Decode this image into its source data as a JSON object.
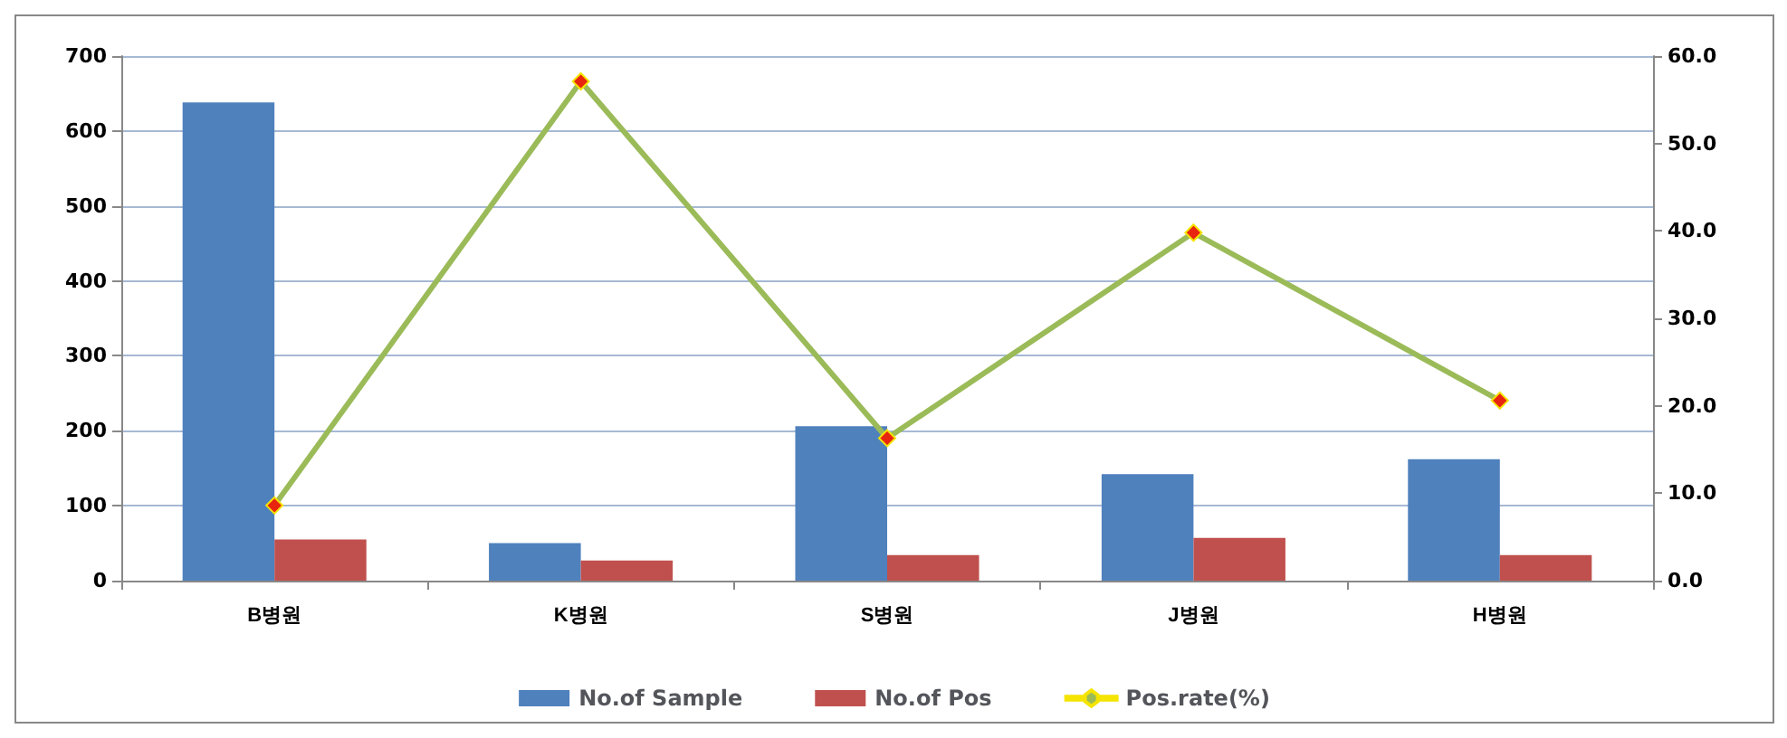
{
  "chart_data": {
    "type": "bar",
    "categories": [
      "B병원",
      "K병원",
      "S병원",
      "J병원",
      "H병원"
    ],
    "series": [
      {
        "name": "No.of Sample",
        "color": "#4f81bd",
        "values": [
          638,
          50,
          206,
          142,
          162
        ]
      },
      {
        "name": "No.of Pos",
        "color": "#c0504d",
        "values": [
          55,
          27,
          34,
          57,
          34
        ]
      },
      {
        "name": "Pos.rate(%)",
        "type": "line",
        "axis": "y2",
        "color": "#9bbb59",
        "marker": "diamond",
        "values": [
          8.6,
          57.1,
          16.3,
          39.8,
          20.6
        ]
      }
    ],
    "ylim": [
      0,
      700
    ],
    "yticks": [
      0,
      100,
      200,
      300,
      400,
      500,
      600,
      700
    ],
    "y2lim": [
      0,
      60
    ],
    "y2ticks": [
      {
        "value": 0,
        "label": "0.0"
      },
      {
        "value": 10,
        "label": "10.0"
      },
      {
        "value": 20,
        "label": "20.0"
      },
      {
        "value": 30,
        "label": "30.0"
      },
      {
        "value": 40,
        "label": "40.0"
      },
      {
        "value": 50,
        "label": "50.0"
      },
      {
        "value": 60,
        "label": "60.0"
      }
    ],
    "grid": "y",
    "legend": "bottom"
  }
}
